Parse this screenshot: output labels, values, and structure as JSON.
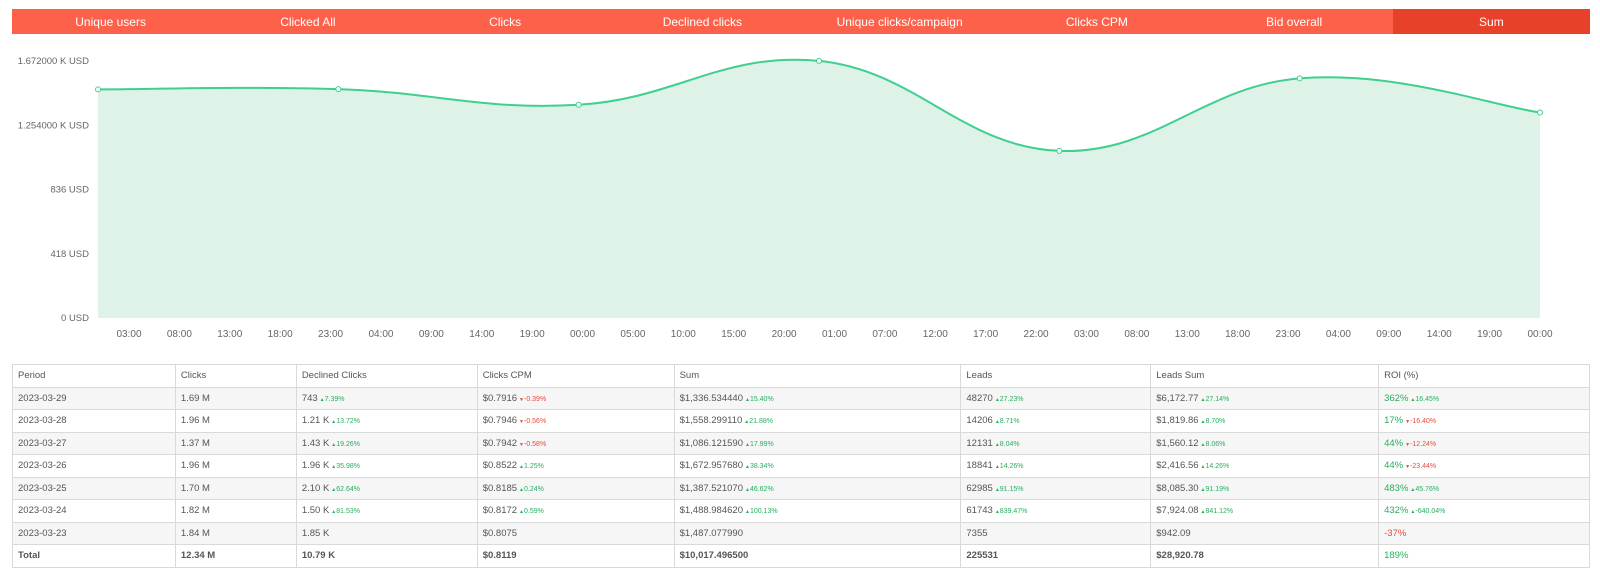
{
  "tabs": [
    {
      "label": "Unique users",
      "active": false
    },
    {
      "label": "Clicked All",
      "active": false
    },
    {
      "label": "Clicks",
      "active": false
    },
    {
      "label": "Declined clicks",
      "active": false
    },
    {
      "label": "Unique clicks/campaign",
      "active": false
    },
    {
      "label": "Clicks CPM",
      "active": false
    },
    {
      "label": "Bid overall",
      "active": false
    },
    {
      "label": "Sum",
      "active": true
    }
  ],
  "colors": {
    "tab_bg": "#fe614a",
    "tab_active_bg": "#e8412a",
    "line": "#3fcf8e",
    "area": "#dff2e8",
    "positive": "#27ae60",
    "negative": "#e74c3c"
  },
  "chart_data": {
    "type": "area",
    "y_tick_labels": [
      "1.672000 K USD",
      "1.254000 K USD",
      "836 USD",
      "418 USD",
      "0 USD"
    ],
    "y_ticks": [
      1672,
      1254,
      836,
      418,
      0
    ],
    "ylim": [
      0,
      1672
    ],
    "x_tick_labels": [
      "03:00",
      "08:00",
      "13:00",
      "18:00",
      "23:00",
      "04:00",
      "09:00",
      "14:00",
      "19:00",
      "00:00",
      "05:00",
      "10:00",
      "15:00",
      "20:00",
      "01:00",
      "07:00",
      "12:00",
      "17:00",
      "22:00",
      "03:00",
      "08:00",
      "13:00",
      "18:00",
      "23:00",
      "04:00",
      "09:00",
      "14:00",
      "19:00",
      "00:00"
    ],
    "points": [
      {
        "x": 0,
        "y": 1487
      },
      {
        "x": 4.8,
        "y": 1489
      },
      {
        "x": 9.6,
        "y": 1387
      },
      {
        "x": 14.4,
        "y": 1673
      },
      {
        "x": 19.2,
        "y": 1087
      },
      {
        "x": 24.0,
        "y": 1559
      },
      {
        "x": 28.8,
        "y": 1337
      }
    ],
    "x_range": [
      0,
      28.8
    ],
    "grid": false,
    "legend": "none"
  },
  "table": {
    "headers": [
      "Period",
      "Clicks",
      "Declined Clicks",
      "Clicks CPM",
      "Sum",
      "Leads",
      "Leads Sum",
      "ROI (%)"
    ],
    "rows": [
      {
        "period": "2023-03-29",
        "clicks": "1.69 M",
        "declined": "743",
        "declined_delta": "7.39%",
        "declined_dir": "up",
        "cpm": "$0.7916",
        "cpm_delta": "-0.39%",
        "cpm_dir": "down",
        "sum": "$1,336.534440",
        "sum_delta": "15.40%",
        "sum_dir": "up",
        "leads": "48270",
        "leads_delta": "27.23%",
        "leads_dir": "up",
        "leads_sum": "$6,172.77",
        "leads_sum_delta": "27.14%",
        "leads_sum_dir": "up",
        "roi": "362%",
        "roi_tone": "up",
        "roi_delta": "16.45%",
        "roi_dir": "up"
      },
      {
        "period": "2023-03-28",
        "clicks": "1.96 M",
        "declined": "1.21 K",
        "declined_delta": "13.72%",
        "declined_dir": "up",
        "cpm": "$0.7946",
        "cpm_delta": "-0.56%",
        "cpm_dir": "down",
        "sum": "$1,558.299110",
        "sum_delta": "21.88%",
        "sum_dir": "up",
        "leads": "14206",
        "leads_delta": "8.71%",
        "leads_dir": "up",
        "leads_sum": "$1,819.86",
        "leads_sum_delta": "8.70%",
        "leads_sum_dir": "up",
        "roi": "17%",
        "roi_tone": "up",
        "roi_delta": "-16.40%",
        "roi_dir": "down"
      },
      {
        "period": "2023-03-27",
        "clicks": "1.37 M",
        "declined": "1.43 K",
        "declined_delta": "19.26%",
        "declined_dir": "up",
        "cpm": "$0.7942",
        "cpm_delta": "-0.58%",
        "cpm_dir": "down",
        "sum": "$1,086.121590",
        "sum_delta": "17.99%",
        "sum_dir": "up",
        "leads": "12131",
        "leads_delta": "8.04%",
        "leads_dir": "up",
        "leads_sum": "$1,560.12",
        "leads_sum_delta": "8.06%",
        "leads_sum_dir": "up",
        "roi": "44%",
        "roi_tone": "up",
        "roi_delta": "-12.24%",
        "roi_dir": "down"
      },
      {
        "period": "2023-03-26",
        "clicks": "1.96 M",
        "declined": "1.96 K",
        "declined_delta": "35.98%",
        "declined_dir": "up",
        "cpm": "$0.8522",
        "cpm_delta": "1.25%",
        "cpm_dir": "up",
        "sum": "$1,672.957680",
        "sum_delta": "38.34%",
        "sum_dir": "up",
        "leads": "18841",
        "leads_delta": "14.26%",
        "leads_dir": "up",
        "leads_sum": "$2,416.56",
        "leads_sum_delta": "14.26%",
        "leads_sum_dir": "up",
        "roi": "44%",
        "roi_tone": "up",
        "roi_delta": "-23.44%",
        "roi_dir": "down"
      },
      {
        "period": "2023-03-25",
        "clicks": "1.70 M",
        "declined": "2.10 K",
        "declined_delta": "62.64%",
        "declined_dir": "up",
        "cpm": "$0.8185",
        "cpm_delta": "0.24%",
        "cpm_dir": "up",
        "sum": "$1,387.521070",
        "sum_delta": "46.62%",
        "sum_dir": "up",
        "leads": "62985",
        "leads_delta": "91.15%",
        "leads_dir": "up",
        "leads_sum": "$8,085.30",
        "leads_sum_delta": "91.19%",
        "leads_sum_dir": "up",
        "roi": "483%",
        "roi_tone": "up",
        "roi_delta": "45.76%",
        "roi_dir": "up"
      },
      {
        "period": "2023-03-24",
        "clicks": "1.82 M",
        "declined": "1.50 K",
        "declined_delta": "81.53%",
        "declined_dir": "up",
        "cpm": "$0.8172",
        "cpm_delta": "0.59%",
        "cpm_dir": "up",
        "sum": "$1,488.984620",
        "sum_delta": "100.13%",
        "sum_dir": "up",
        "leads": "61743",
        "leads_delta": "839.47%",
        "leads_dir": "up",
        "leads_sum": "$7,924.08",
        "leads_sum_delta": "841.12%",
        "leads_sum_dir": "up",
        "roi": "432%",
        "roi_tone": "up",
        "roi_delta": "-640.04%",
        "roi_dir": "up"
      },
      {
        "period": "2023-03-23",
        "clicks": "1.84 M",
        "declined": "1.85 K",
        "declined_delta": "",
        "declined_dir": "",
        "cpm": "$0.8075",
        "cpm_delta": "",
        "cpm_dir": "",
        "sum": "$1,487.077990",
        "sum_delta": "",
        "sum_dir": "",
        "leads": "7355",
        "leads_delta": "",
        "leads_dir": "",
        "leads_sum": "$942.09",
        "leads_sum_delta": "",
        "leads_sum_dir": "",
        "roi": "-37%",
        "roi_tone": "down",
        "roi_delta": "",
        "roi_dir": ""
      }
    ],
    "total": {
      "period": "Total",
      "clicks": "12.34 M",
      "declined": "10.79 K",
      "cpm": "$0.8119",
      "sum": "$10,017.496500",
      "leads": "225531",
      "leads_sum": "$28,920.78",
      "roi": "189%",
      "roi_tone": "up"
    }
  }
}
